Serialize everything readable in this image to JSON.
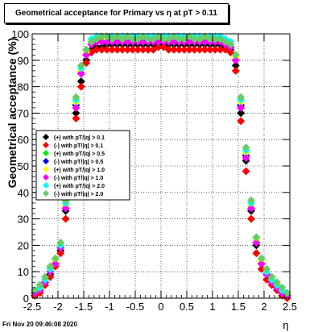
{
  "chart_data": {
    "type": "scatter",
    "title": "Geometrical acceptance for Primary vs η at pT > 0.11",
    "xlabel": "η",
    "ylabel": "Geometrical acceptance (%)",
    "xlim": [
      -2.5,
      2.5
    ],
    "ylim": [
      0,
      100
    ],
    "xticks": [
      "-2.5",
      "-2",
      "-1.5",
      "-1",
      "-0.5",
      "0",
      "0.5",
      "1",
      "1.5",
      "2",
      "2.5"
    ],
    "yticks": [
      "0",
      "10",
      "20",
      "30",
      "40",
      "50",
      "60",
      "70",
      "80",
      "90",
      "100"
    ],
    "grid": true,
    "legend_position": "left-middle",
    "series": [
      {
        "name": "(+) with pT/|q| > 0.1",
        "color": "#000000",
        "x": [
          -2.45,
          -2.35,
          -2.25,
          -2.15,
          -2.05,
          -1.95,
          -1.85,
          -1.75,
          -1.65,
          -1.55,
          -1.45,
          -1.35,
          -1.25,
          -1.15,
          -1.05,
          -0.95,
          -0.85,
          -0.75,
          -0.65,
          -0.55,
          -0.45,
          -0.35,
          -0.25,
          -0.15,
          -0.05,
          0.05,
          0.15,
          0.25,
          0.35,
          0.45,
          0.55,
          0.65,
          0.75,
          0.85,
          0.95,
          1.05,
          1.15,
          1.25,
          1.35,
          1.45,
          1.55,
          1.65,
          1.75,
          1.85,
          1.95,
          2.05,
          2.15,
          2.25,
          2.35,
          2.45
        ],
        "y": [
          1,
          3,
          6,
          9,
          13,
          18,
          33,
          55,
          70,
          82,
          90,
          94,
          95,
          95,
          96,
          96,
          96,
          96,
          96,
          96,
          96,
          96,
          96,
          96,
          96,
          96,
          96,
          96,
          96,
          96,
          96,
          96,
          96,
          96,
          96,
          96,
          96,
          95,
          94,
          88,
          70,
          52,
          33,
          20,
          13,
          9,
          6,
          4,
          2,
          1
        ]
      },
      {
        "name": "(-) with pT/|q| > 0.1",
        "color": "#ff0000",
        "x": [
          -2.45,
          -2.35,
          -2.25,
          -2.15,
          -2.05,
          -1.95,
          -1.85,
          -1.75,
          -1.65,
          -1.55,
          -1.45,
          -1.35,
          -1.25,
          -1.15,
          -1.05,
          -0.95,
          -0.85,
          -0.75,
          -0.65,
          -0.55,
          -0.45,
          -0.35,
          -0.25,
          -0.15,
          -0.05,
          0.05,
          0.15,
          0.25,
          0.35,
          0.45,
          0.55,
          0.65,
          0.75,
          0.85,
          0.95,
          1.05,
          1.15,
          1.25,
          1.35,
          1.45,
          1.55,
          1.65,
          1.75,
          1.85,
          1.95,
          2.05,
          2.15,
          2.25,
          2.35,
          2.45
        ],
        "y": [
          1,
          2,
          5,
          8,
          12,
          17,
          30,
          52,
          68,
          80,
          89,
          93,
          94,
          94,
          94,
          94,
          94,
          94,
          94,
          94,
          94,
          94,
          94,
          94,
          95,
          95,
          94,
          94,
          94,
          94,
          94,
          94,
          94,
          94,
          94,
          94,
          94,
          94,
          93,
          86,
          67,
          48,
          30,
          17,
          11,
          7,
          5,
          3,
          1,
          0
        ]
      },
      {
        "name": "(+) with pT/|q| > 0.5",
        "color": "#00ee00",
        "x": [
          -2.45,
          -2.35,
          -2.25,
          -2.15,
          -2.05,
          -1.95,
          -1.85,
          -1.75,
          -1.65,
          -1.55,
          -1.45,
          -1.35,
          -1.25,
          -1.15,
          -1.05,
          -0.95,
          -0.85,
          -0.75,
          -0.65,
          -0.55,
          -0.45,
          -0.35,
          -0.25,
          -0.15,
          -0.05,
          0.05,
          0.15,
          0.25,
          0.35,
          0.45,
          0.55,
          0.65,
          0.75,
          0.85,
          0.95,
          1.05,
          1.15,
          1.25,
          1.35,
          1.45,
          1.55,
          1.65,
          1.75,
          1.85,
          1.95,
          2.05,
          2.15,
          2.25,
          2.35,
          2.45
        ],
        "y": [
          2,
          4,
          7,
          11,
          14,
          20,
          35,
          58,
          74,
          86,
          93,
          97,
          98,
          98,
          98,
          98,
          98,
          98,
          98,
          98,
          98,
          98,
          98,
          98,
          98,
          98,
          98,
          98,
          98,
          98,
          98,
          98,
          98,
          98,
          98,
          98,
          98,
          97,
          96,
          91,
          74,
          55,
          35,
          22,
          14,
          10,
          7,
          5,
          3,
          1
        ]
      },
      {
        "name": "(-) with pT/|q| > 0.5",
        "color": "#0000ff",
        "x": [
          -2.45,
          -2.35,
          -2.25,
          -2.15,
          -2.05,
          -1.95,
          -1.85,
          -1.75,
          -1.65,
          -1.55,
          -1.45,
          -1.35,
          -1.25,
          -1.15,
          -1.05,
          -0.95,
          -0.85,
          -0.75,
          -0.65,
          -0.55,
          -0.45,
          -0.35,
          -0.25,
          -0.15,
          -0.05,
          0.05,
          0.15,
          0.25,
          0.35,
          0.45,
          0.55,
          0.65,
          0.75,
          0.85,
          0.95,
          1.05,
          1.15,
          1.25,
          1.35,
          1.45,
          1.55,
          1.65,
          1.75,
          1.85,
          1.95,
          2.05,
          2.15,
          2.25,
          2.35,
          2.45
        ],
        "y": [
          2,
          3,
          6,
          10,
          14,
          19,
          34,
          57,
          73,
          85,
          92,
          96,
          97,
          97,
          97,
          97,
          97,
          97,
          97,
          97,
          97,
          97,
          97,
          97,
          97,
          97,
          97,
          97,
          97,
          97,
          97,
          97,
          97,
          97,
          97,
          97,
          97,
          96,
          95,
          90,
          73,
          54,
          34,
          21,
          13,
          9,
          6,
          4,
          2,
          1
        ]
      },
      {
        "name": "(+) with pT/|q| > 1.0",
        "color": "#ffff00",
        "x": [
          -2.45,
          -2.35,
          -2.25,
          -2.15,
          -2.05,
          -1.95,
          -1.85,
          -1.75,
          -1.65,
          -1.55,
          -1.45,
          -1.35,
          -1.25,
          -1.15,
          -1.05,
          -0.95,
          -0.85,
          -0.75,
          -0.65,
          -0.55,
          -0.45,
          -0.35,
          -0.25,
          -0.15,
          -0.05,
          0.05,
          0.15,
          0.25,
          0.35,
          0.45,
          0.55,
          0.65,
          0.75,
          0.85,
          0.95,
          1.05,
          1.15,
          1.25,
          1.35,
          1.45,
          1.55,
          1.65,
          1.75,
          1.85,
          1.95,
          2.05,
          2.15,
          2.25,
          2.35,
          2.45
        ],
        "y": [
          2,
          4,
          7,
          10,
          14,
          20,
          35,
          58,
          74,
          86,
          93,
          97,
          98,
          98,
          98,
          98,
          98,
          98,
          98,
          98,
          98,
          98,
          98,
          98,
          98,
          98,
          98,
          98,
          98,
          98,
          98,
          98,
          98,
          98,
          98,
          98,
          98,
          97,
          96,
          91,
          74,
          55,
          35,
          22,
          14,
          10,
          7,
          5,
          3,
          1
        ]
      },
      {
        "name": "(-) with pT/|q| > 1.0",
        "color": "#ff00ff",
        "x": [
          -2.45,
          -2.35,
          -2.25,
          -2.15,
          -2.05,
          -1.95,
          -1.85,
          -1.75,
          -1.65,
          -1.55,
          -1.45,
          -1.35,
          -1.25,
          -1.15,
          -1.05,
          -0.95,
          -0.85,
          -0.75,
          -0.65,
          -0.55,
          -0.45,
          -0.35,
          -0.25,
          -0.15,
          -0.05,
          0.05,
          0.15,
          0.25,
          0.35,
          0.45,
          0.55,
          0.65,
          0.75,
          0.85,
          0.95,
          1.05,
          1.15,
          1.25,
          1.35,
          1.45,
          1.55,
          1.65,
          1.75,
          1.85,
          1.95,
          2.05,
          2.15,
          2.25,
          2.35,
          2.45
        ],
        "y": [
          2,
          3,
          6,
          10,
          13,
          19,
          34,
          57,
          72,
          85,
          92,
          96,
          97,
          97,
          97,
          97,
          97,
          97,
          97,
          97,
          97,
          97,
          97,
          97,
          97,
          97,
          97,
          97,
          97,
          97,
          97,
          97,
          97,
          97,
          97,
          97,
          97,
          96,
          95,
          90,
          72,
          53,
          34,
          21,
          13,
          9,
          6,
          4,
          2,
          1
        ]
      },
      {
        "name": "(+) with pT/|q| > 2.0",
        "color": "#00ffff",
        "x": [
          -2.45,
          -2.35,
          -2.25,
          -2.15,
          -2.05,
          -1.95,
          -1.85,
          -1.75,
          -1.65,
          -1.55,
          -1.45,
          -1.35,
          -1.25,
          -1.15,
          -1.05,
          -0.95,
          -0.85,
          -0.75,
          -0.65,
          -0.55,
          -0.45,
          -0.35,
          -0.25,
          -0.15,
          -0.05,
          0.05,
          0.15,
          0.25,
          0.35,
          0.45,
          0.55,
          0.65,
          0.75,
          0.85,
          0.95,
          1.05,
          1.15,
          1.25,
          1.35,
          1.45,
          1.55,
          1.65,
          1.75,
          1.85,
          1.95,
          2.05,
          2.15,
          2.25,
          2.35,
          2.45
        ],
        "y": [
          3,
          4,
          7,
          11,
          15,
          20,
          36,
          59,
          75,
          87,
          94,
          98,
          99,
          99,
          99,
          99,
          99,
          99,
          99,
          99,
          99,
          99,
          99,
          99,
          99,
          99,
          99,
          99,
          99,
          99,
          99,
          99,
          99,
          99,
          99,
          99,
          99,
          98,
          97,
          92,
          75,
          56,
          36,
          23,
          15,
          10,
          7,
          5,
          3,
          2
        ]
      },
      {
        "name": "(-) with pT/|q| > 2.0",
        "color": "#66cc66",
        "x": [
          -2.45,
          -2.35,
          -2.25,
          -2.15,
          -2.05,
          -1.95,
          -1.85,
          -1.75,
          -1.65,
          -1.55,
          -1.45,
          -1.35,
          -1.25,
          -1.15,
          -1.05,
          -0.95,
          -0.85,
          -0.75,
          -0.65,
          -0.55,
          -0.45,
          -0.35,
          -0.25,
          -0.15,
          -0.05,
          0.05,
          0.15,
          0.25,
          0.35,
          0.45,
          0.55,
          0.65,
          0.75,
          0.85,
          0.95,
          1.05,
          1.15,
          1.25,
          1.35,
          1.45,
          1.55,
          1.65,
          1.75,
          1.85,
          1.95,
          2.05,
          2.15,
          2.25,
          2.35,
          2.45
        ],
        "y": [
          3,
          5,
          8,
          12,
          15,
          21,
          37,
          60,
          76,
          88,
          94,
          97,
          98,
          99,
          99,
          98,
          99,
          98,
          99,
          98,
          98,
          99,
          98,
          98,
          99,
          98,
          98,
          99,
          98,
          98,
          99,
          98,
          98,
          99,
          98,
          98,
          98,
          97,
          96,
          92,
          76,
          57,
          37,
          23,
          15,
          11,
          8,
          6,
          4,
          2
        ]
      }
    ]
  },
  "footer_text": "Fri Nov 20 09:46:08 2020"
}
